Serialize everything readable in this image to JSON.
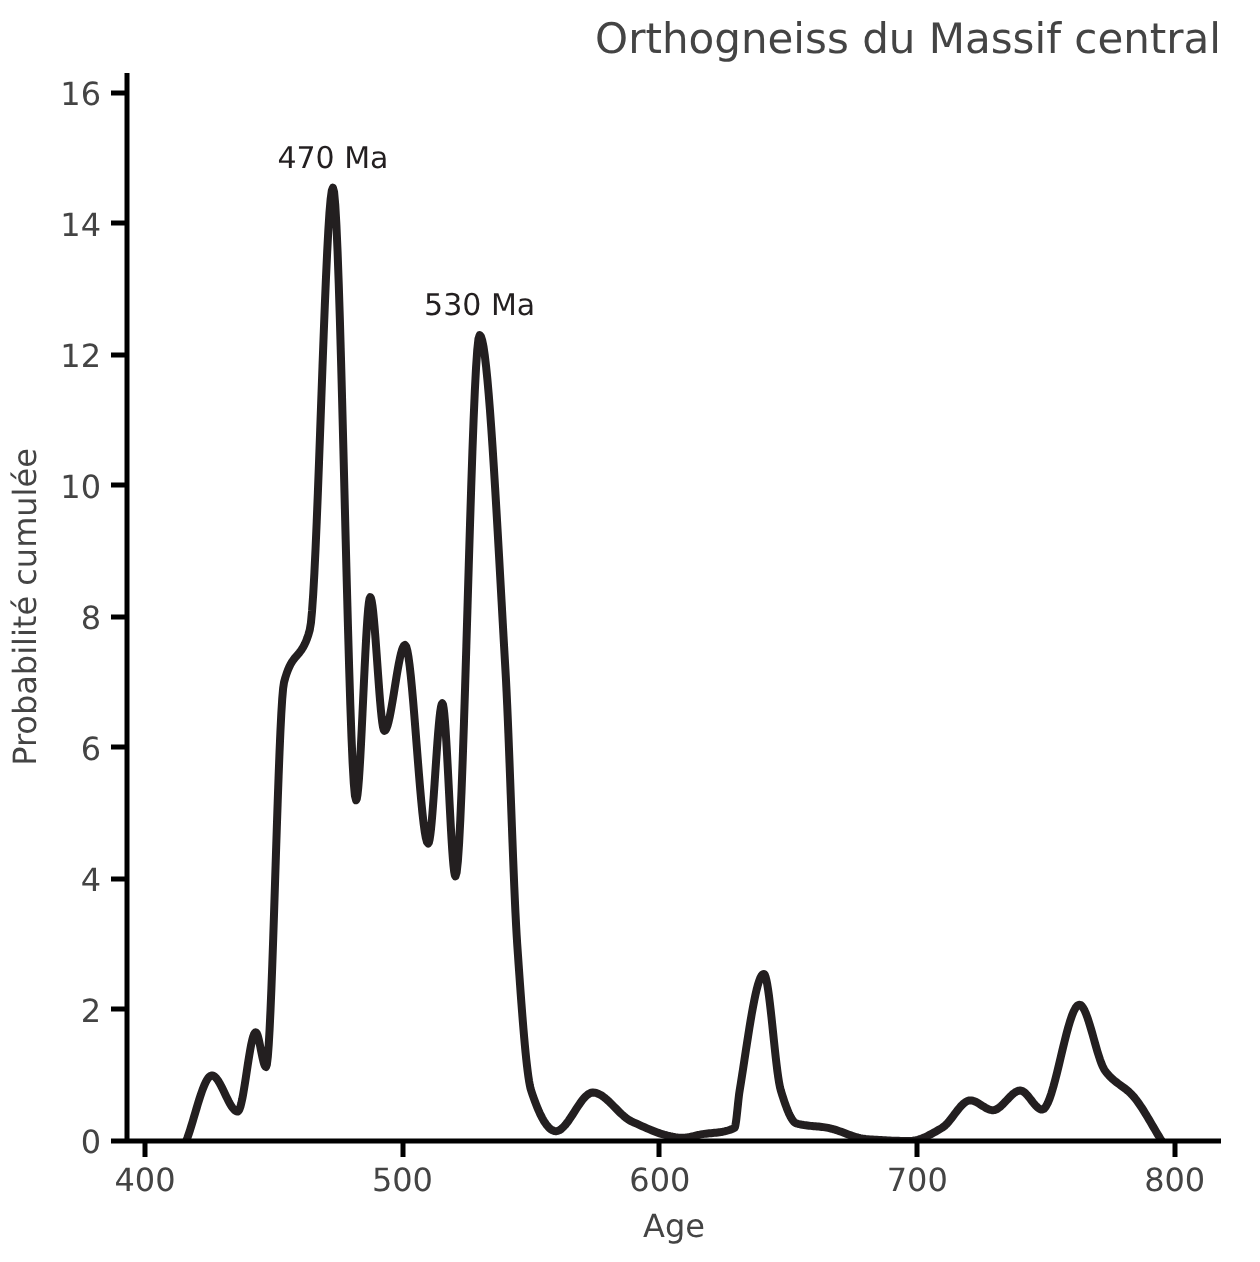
{
  "chart_data": {
    "type": "line",
    "title": "Orthogneiss du Massif central",
    "xlabel": "Age",
    "ylabel": "Probabilité cumulée",
    "x": [
      416,
      426,
      436,
      443,
      447,
      454,
      464,
      473,
      482,
      487.5,
      493,
      501,
      510,
      515.5,
      520.6,
      530,
      540,
      544.6,
      550,
      559.6,
      574,
      589,
      609,
      616,
      629,
      631,
      640.4,
      647,
      653,
      665.4,
      680,
      697,
      709.6,
      720.6,
      729.4,
      740,
      748.5,
      763,
      773,
      784,
      795
    ],
    "series": [
      {
        "color": "#231f20",
        "values": [
          0,
          1.0,
          0.45,
          1.66,
          1.13,
          7.0,
          7.8,
          14.55,
          5.2,
          8.3,
          6.26,
          7.57,
          4.54,
          6.68,
          4.04,
          12.3,
          7.2,
          3.0,
          0.77,
          0.15,
          0.74,
          0.3,
          0.05,
          0.1,
          0.2,
          0.77,
          2.55,
          0.77,
          0.27,
          0.2,
          0.03,
          0,
          0.2,
          0.62,
          0.47,
          0.77,
          0.48,
          2.08,
          1.07,
          0.68,
          0
        ]
      }
    ],
    "annotations": [
      {
        "text": "470 Ma",
        "x": 473,
        "y": 14.55
      },
      {
        "text": "530 Ma",
        "x": 530,
        "y": 12.3
      }
    ],
    "xlim": [
      393,
      818
    ],
    "ylim": [
      0,
      16.3
    ],
    "xticks": [
      400,
      500,
      600,
      700,
      800
    ],
    "yticks": [
      0,
      2,
      4,
      6,
      8,
      10,
      12,
      14,
      16
    ],
    "grid": false,
    "marker": "none",
    "line_style": "solid"
  }
}
